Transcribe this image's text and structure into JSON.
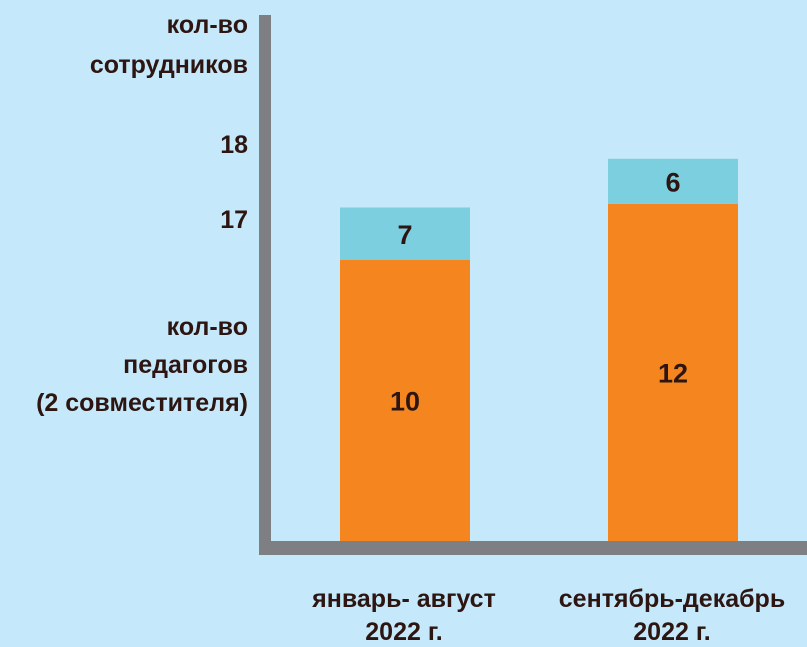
{
  "chart_data": {
    "type": "bar",
    "stacked": true,
    "categories": [
      {
        "line1": "январь- август",
        "line2": "2022 г."
      },
      {
        "line1": "сентябрь-декабрь",
        "line2": "2022 г."
      }
    ],
    "series": [
      {
        "name": "кол-во педагогов (2 совместителя)",
        "values": [
          10,
          12
        ],
        "color": "#f5861f"
      },
      {
        "name": "",
        "values": [
          7,
          6
        ],
        "color": "#7ccfdf"
      }
    ],
    "totals": [
      17,
      18
    ],
    "y_label_top": [
      "кол-во",
      "сотрудников"
    ],
    "y_label_middle": [
      "кол-во",
      "педагогов",
      "(2 совместителя)"
    ],
    "y_ticks": [
      "18",
      "17"
    ],
    "axis_color": "#7d7f83",
    "grid": false
  }
}
